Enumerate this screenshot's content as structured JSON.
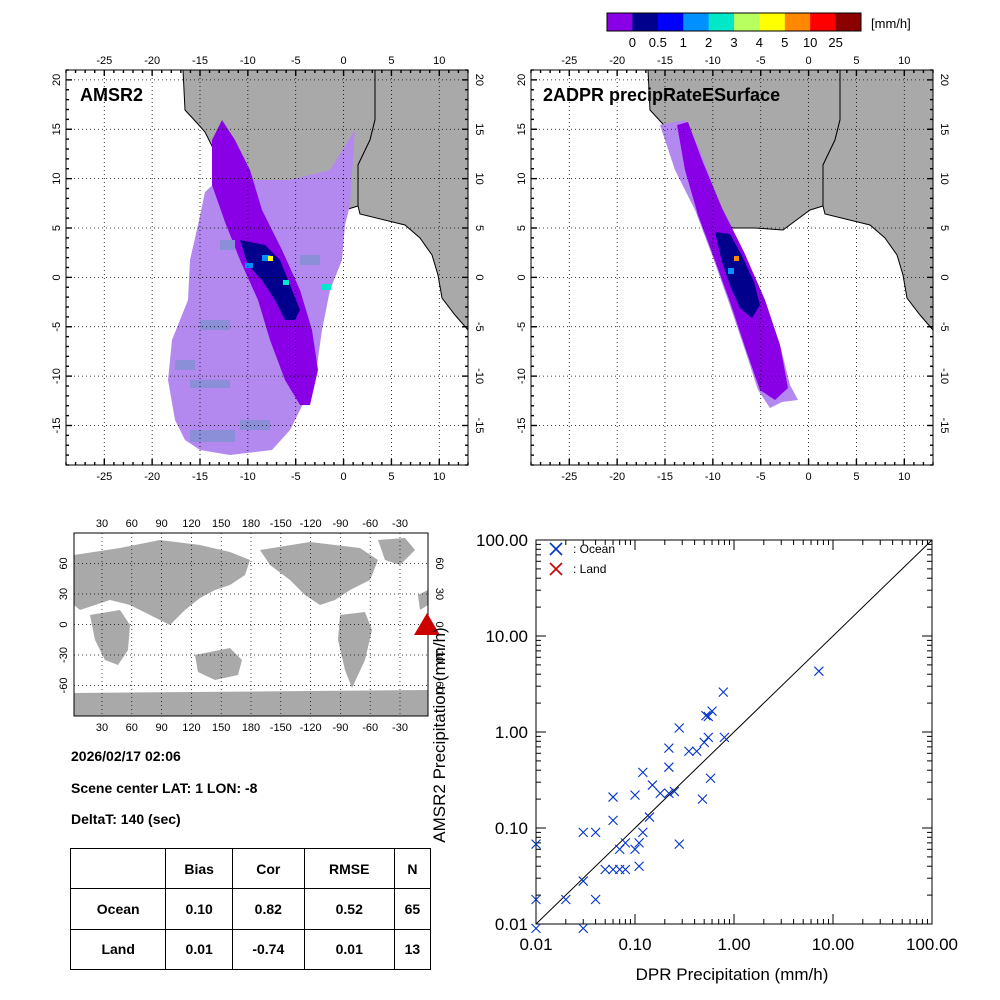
{
  "colorbar": {
    "unit": "[mm/h]",
    "ticks": [
      "0",
      "0.5",
      "1",
      "2",
      "3",
      "4",
      "5",
      "10",
      "25"
    ],
    "colors": [
      "#8a00e6",
      "#00008c",
      "#0000ff",
      "#0090ff",
      "#00e8c8",
      "#b8ff60",
      "#ffff00",
      "#ff8800",
      "#ff0000",
      "#8c0000"
    ]
  },
  "map_left": {
    "title": "AMSR2",
    "lon_ticks": [
      "-25",
      "-20",
      "-15",
      "-10",
      "-5",
      "0",
      "5",
      "10"
    ],
    "lat_ticks": [
      "20",
      "15",
      "10",
      "5",
      "0",
      "-5",
      "-10",
      "-15"
    ]
  },
  "map_right": {
    "title": "2ADPR precipRateESurface",
    "lon_ticks": [
      "-25",
      "-20",
      "-15",
      "-10",
      "-5",
      "0",
      "5",
      "10"
    ],
    "lat_ticks": [
      "20",
      "15",
      "10",
      "5",
      "0",
      "-5",
      "-10",
      "-15"
    ]
  },
  "world_map": {
    "lon_ticks": [
      "30",
      "60",
      "90",
      "120",
      "150",
      "180",
      "-150",
      "-120",
      "-90",
      "-60",
      "-30"
    ],
    "lat_ticks": [
      "60",
      "30",
      "0",
      "-30",
      "-60"
    ],
    "marker_color": "#cc0000"
  },
  "info": {
    "datetime": "2026/02/17 02:06",
    "scene_center": "Scene center LAT:  1   LON:  -8",
    "delta_t": "DeltaT:  140 (sec)"
  },
  "stats": {
    "headers": [
      "",
      "Bias",
      "Cor",
      "RMSE",
      "N"
    ],
    "rows": [
      [
        "Ocean",
        "0.10",
        "0.82",
        "0.52",
        "65"
      ],
      [
        "Land",
        "0.01",
        "-0.74",
        "0.01",
        "13"
      ]
    ]
  },
  "chart_data": {
    "type": "scatter",
    "xlabel": "DPR Precipitation (mm/h)",
    "ylabel": "AMSR2 Precipitation (mm/h)",
    "xlim": [
      0.01,
      100
    ],
    "ylim": [
      0.01,
      100
    ],
    "scale": "log",
    "tick_labels": [
      "0.01",
      "0.10",
      "1.00",
      "10.00",
      "100.00"
    ],
    "legend": [
      {
        "name": ": Ocean",
        "color": "#0033cc"
      },
      {
        "name": ": Land",
        "color": "#cc0000"
      }
    ],
    "series": [
      {
        "name": "Ocean",
        "color": "#0033cc",
        "points": [
          [
            0.01,
            0.068
          ],
          [
            0.01,
            0.018
          ],
          [
            0.01,
            0.009
          ],
          [
            0.02,
            0.018
          ],
          [
            0.03,
            0.028
          ],
          [
            0.03,
            0.009
          ],
          [
            0.03,
            0.09
          ],
          [
            0.04,
            0.09
          ],
          [
            0.04,
            0.018
          ],
          [
            0.05,
            0.037
          ],
          [
            0.06,
            0.037
          ],
          [
            0.06,
            0.12
          ],
          [
            0.06,
            0.21
          ],
          [
            0.07,
            0.06
          ],
          [
            0.07,
            0.037
          ],
          [
            0.08,
            0.037
          ],
          [
            0.08,
            0.07
          ],
          [
            0.1,
            0.06
          ],
          [
            0.1,
            0.22
          ],
          [
            0.11,
            0.04
          ],
          [
            0.11,
            0.07
          ],
          [
            0.12,
            0.09
          ],
          [
            0.12,
            0.38
          ],
          [
            0.14,
            0.13
          ],
          [
            0.15,
            0.28
          ],
          [
            0.18,
            0.23
          ],
          [
            0.22,
            0.23
          ],
          [
            0.22,
            0.43
          ],
          [
            0.22,
            0.68
          ],
          [
            0.25,
            0.24
          ],
          [
            0.28,
            1.1
          ],
          [
            0.28,
            0.068
          ],
          [
            0.35,
            0.63
          ],
          [
            0.42,
            0.63
          ],
          [
            0.48,
            0.2
          ],
          [
            0.5,
            0.78
          ],
          [
            0.52,
            1.48
          ],
          [
            0.55,
            0.88
          ],
          [
            0.55,
            1.45
          ],
          [
            0.58,
            0.33
          ],
          [
            0.6,
            1.65
          ],
          [
            0.78,
            2.6
          ],
          [
            0.8,
            0.88
          ],
          [
            7.2,
            4.3
          ]
        ]
      },
      {
        "name": "Land",
        "color": "#cc0000",
        "points": []
      }
    ]
  }
}
